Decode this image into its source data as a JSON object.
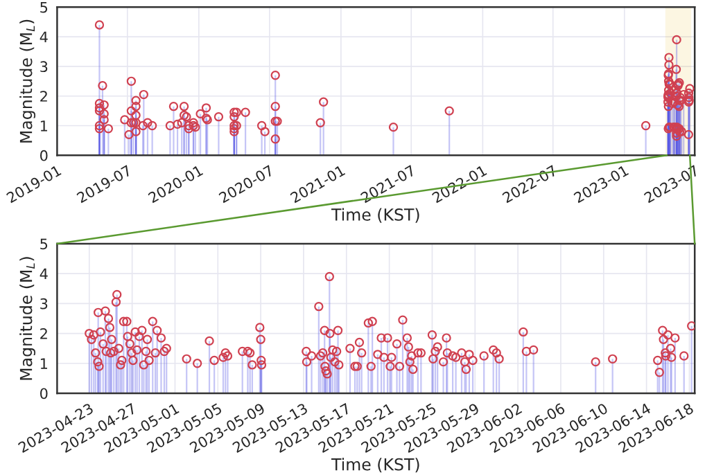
{
  "chart_data": [
    {
      "type": "lollipop",
      "xlabel": "Time (KST)",
      "ylabel": "Magnitude (M$_{L}$)",
      "xlim": [
        "2019-01",
        "2023-07"
      ],
      "ylim": [
        0,
        5
      ],
      "yticks": [
        0,
        1,
        2,
        3,
        4,
        5
      ],
      "xticks": [
        "2019-01",
        "2019-07",
        "2020-01",
        "2020-07",
        "2021-01",
        "2021-07",
        "2022-01",
        "2022-07",
        "2023-01",
        "2023-07"
      ],
      "grid": true,
      "marker": "circle",
      "bands": [
        {
          "axis": "x",
          "from": "2023-04-20",
          "to": "2023-06-18T12:00",
          "color": "#e8c040"
        }
      ],
      "series": [
        {
          "color": "#d04050",
          "x": [
            "2019-04-20",
            "2019-04-20",
            "2019-04-20",
            "2019-04-20",
            "2019-04-20",
            "2019-04-20",
            "2019-04-28",
            "2019-05-02",
            "2019-05-02",
            "2019-05-02",
            "2019-05-13",
            "2019-06-24",
            "2019-07-05",
            "2019-07-11",
            "2019-07-11",
            "2019-07-11",
            "2019-07-17",
            "2019-07-23",
            "2019-07-23",
            "2019-07-23",
            "2019-07-23",
            "2019-07-23",
            "2019-08-10",
            "2019-08-12",
            "2019-08-22",
            "2019-09-03",
            "2019-10-19",
            "2019-10-28",
            "2019-11-07",
            "2019-11-18",
            "2019-11-24",
            "2019-11-24",
            "2019-11-30",
            "2019-12-06",
            "2019-12-06",
            "2019-12-18",
            "2019-12-18",
            "2019-12-23",
            "2020-01-05",
            "2020-01-20",
            "2020-01-20",
            "2020-01-23",
            "2020-02-21",
            "2020-04-01",
            "2020-04-01",
            "2020-04-01",
            "2020-04-01",
            "2020-04-01",
            "2020-04-07",
            "2020-04-07",
            "2020-04-30",
            "2020-06-11",
            "2020-06-19",
            "2020-07-16",
            "2020-07-16",
            "2020-07-16",
            "2020-07-16",
            "2020-07-21",
            "2020-11-09",
            "2020-11-17",
            "2021-05-16",
            "2021-10-07",
            "2023-02-25",
            "2023-04-23T00:00",
            "2023-04-23T05:00",
            "2023-04-23T10:00",
            "2023-04-23T14:00",
            "2023-04-23T19:00",
            "2023-04-23T20:00",
            "2023-04-23T22:00",
            "2023-04-24T01:00",
            "2023-04-24T07:00",
            "2023-04-24T12:00",
            "2023-04-24T14:00",
            "2023-04-24T19:00",
            "2023-04-24T22:00",
            "2023-04-25T00:00",
            "2023-04-25T02:00",
            "2023-04-25T07:00",
            "2023-04-25T12:00",
            "2023-04-25T14:00",
            "2023-04-25T18:00",
            "2023-04-25T22:00",
            "2023-04-26T01:00",
            "2023-04-26T05:00",
            "2023-04-26T12:00",
            "2023-04-26T14:00",
            "2023-04-26T19:00",
            "2023-04-26T23:00",
            "2023-04-27T02:00",
            "2023-04-27T07:00",
            "2023-04-27T11:00",
            "2023-04-27T16:00",
            "2023-04-27T22:00",
            "2023-04-28T02:00",
            "2023-04-28T07:00",
            "2023-04-28T10:00",
            "2023-04-28T14:00",
            "2023-04-28T22:00",
            "2023-04-29T04:00",
            "2023-04-29T08:00",
            "2023-04-29T17:00",
            "2023-04-30T00:00",
            "2023-04-30T05:00",
            "2023-05-02T02:00",
            "2023-05-03T02:00",
            "2023-05-04T05:00",
            "2023-05-04T16:00",
            "2023-05-05T12:00",
            "2023-05-05T17:00",
            "2023-05-05T22:00",
            "2023-05-07T07:00",
            "2023-05-07T19:00",
            "2023-05-08T00:00",
            "2023-05-08T05:00",
            "2023-05-08T22:00",
            "2023-05-09T00:00",
            "2023-05-09T01:00",
            "2023-05-09T02:00",
            "2023-05-13T06:00",
            "2023-05-13T07:00",
            "2023-05-13T18:00",
            "2023-05-14T10:00",
            "2023-05-14T14:00",
            "2023-05-14T19:00",
            "2023-05-14T23:00",
            "2023-05-15T00:00",
            "2023-05-15T02:00",
            "2023-05-15T05:00",
            "2023-05-15T10:00",
            "2023-05-15T11:00",
            "2023-05-15T13:00",
            "2023-05-15T17:00",
            "2023-05-15T22:00",
            "2023-05-16T02:00",
            "2023-05-16T05:00",
            "2023-05-16T07:00",
            "2023-05-17T08:00",
            "2023-05-17T19:00",
            "2023-05-18T00:00",
            "2023-05-18T05:00",
            "2023-05-18T10:00",
            "2023-05-19T01:00",
            "2023-05-19T07:00",
            "2023-05-19T10:00",
            "2023-05-19T22:00",
            "2023-05-20T06:00",
            "2023-05-20T12:00",
            "2023-05-20T20:00",
            "2023-05-21T02:00",
            "2023-05-21T05:00",
            "2023-05-21T17:00",
            "2023-05-21T23:00",
            "2023-05-22T06:00",
            "2023-05-22T16:00",
            "2023-05-22T19:00",
            "2023-05-22T22:00",
            "2023-05-23T02:00",
            "2023-05-23T05:00",
            "2023-05-23T16:00",
            "2023-05-23T23:00",
            "2023-05-25T00:00",
            "2023-05-25T02:00",
            "2023-05-25T07:00",
            "2023-05-25T12:00",
            "2023-05-26T01:00",
            "2023-05-26T08:00",
            "2023-05-26T10:00",
            "2023-05-26T22:00",
            "2023-05-27T05:00",
            "2023-05-27T18:00",
            "2023-05-28T01:00",
            "2023-05-28T04:00",
            "2023-05-28T11:00",
            "2023-05-28T19:00",
            "2023-05-29T20:00",
            "2023-05-30T17:00",
            "2023-05-31T00:00",
            "2023-05-31T06:00",
            "2023-06-02T12:00",
            "2023-06-02T19:00",
            "2023-06-03T11:00",
            "2023-06-09T06:00",
            "2023-06-10T20:00",
            "2023-06-15T01:00",
            "2023-06-15T05:00",
            "2023-06-15T12:00",
            "2023-06-15T14:00",
            "2023-06-15T18:00",
            "2023-06-15T19:00",
            "2023-06-16T00:00",
            "2023-06-16T06:00",
            "2023-06-16T08:00",
            "2023-06-16T16:00",
            "2023-06-17T12:00",
            "2023-06-18T05:00"
          ],
          "values": [
            4.4,
            1.75,
            1.6,
            1.5,
            1.0,
            0.9,
            2.35,
            1.7,
            1.4,
            1.2,
            0.9,
            1.2,
            0.7,
            2.5,
            1.5,
            1.1,
            1.1,
            1.85,
            1.65,
            1.35,
            1.1,
            0.8,
            1.0,
            2.05,
            1.1,
            1.0,
            1.0,
            1.65,
            1.05,
            1.1,
            1.65,
            1.35,
            1.3,
            0.9,
            1.0,
            1.0,
            1.1,
            0.95,
            1.4,
            1.6,
            1.25,
            1.2,
            1.3,
            1.45,
            1.3,
            1.0,
            0.9,
            0.8,
            1.45,
            1.0,
            1.45,
            1.0,
            0.8,
            2.7,
            1.65,
            1.15,
            0.55,
            1.15,
            1.1,
            1.8,
            0.95,
            1.5,
            1.0,
            2.0,
            1.8,
            1.95,
            null,
            null,
            2.7,
            0.9,
            2.05,
            1.65,
            2.75,
            null,
            2.5,
            2.2,
            null,
            null,
            null,
            3.05,
            3.3,
            null,
            0.95,
            null,
            2.4,
            2.4,
            null,
            null,
            null,
            null,
            null,
            null,
            null,
            null,
            0.95,
            null,
            null,
            null,
            2.4,
            null,
            2.1,
            null,
            null,
            null,
            null,
            null,
            1.75,
            null,
            null,
            null,
            null,
            null,
            null,
            null,
            0.95,
            2.2,
            1.8,
            null,
            0.95,
            null,
            null,
            null,
            2.9,
            null,
            null,
            2.1,
            0.9,
            0.75,
            0.65,
            3.9,
            2.0,
            null,
            null,
            null,
            null,
            2.1,
            0.95,
            null,
            null,
            0.9,
            1.7,
            null,
            2.35,
            null,
            2.4,
            null,
            null,
            null,
            null,
            null,
            null,
            1.65,
            0.9,
            2.45,
            1.85,
            null,
            null,
            null,
            0.8,
            null,
            null,
            1.95,
            null,
            null,
            null,
            null,
            1.85,
            null,
            null,
            null,
            null,
            null,
            0.8,
            null,
            null,
            null,
            null,
            null,
            null,
            2.05,
            null,
            null,
            null,
            null,
            null,
            0.7,
            2.1,
            1.8,
            null,
            null,
            1.95,
            null,
            null,
            1.85,
            null,
            2.25
          ]
        }
      ]
    },
    {
      "type": "lollipop",
      "xlabel": "Time (KST)",
      "ylabel": "Magnitude (M$_{L}$)",
      "xlim": [
        "2023-04-20",
        "2023-06-18T12:00"
      ],
      "ylim": [
        0,
        5
      ],
      "yticks": [
        0,
        1,
        2,
        3,
        4,
        5
      ],
      "xticks": [
        "2023-04-23",
        "2023-04-27",
        "2023-05-01",
        "2023-05-05",
        "2023-05-09",
        "2023-05-13",
        "2023-05-17",
        "2023-05-21",
        "2023-05-25",
        "2023-05-29",
        "2023-06-02",
        "2023-06-06",
        "2023-06-10",
        "2023-06-14",
        "2023-06-18"
      ],
      "grid": true,
      "marker": "circle",
      "series": [
        {
          "color": "#d04050",
          "x": [
            "2023-04-23T00:00",
            "2023-04-23T05:00",
            "2023-04-23T10:00",
            "2023-04-23T14:00",
            "2023-04-23T19:00",
            "2023-04-23T20:00",
            "2023-04-23T22:00",
            "2023-04-24T01:00",
            "2023-04-24T07:00",
            "2023-04-24T12:00",
            "2023-04-24T14:00",
            "2023-04-24T19:00",
            "2023-04-24T22:00",
            "2023-04-25T00:00",
            "2023-04-25T02:00",
            "2023-04-25T07:00",
            "2023-04-25T12:00",
            "2023-04-25T14:00",
            "2023-04-25T18:00",
            "2023-04-25T22:00",
            "2023-04-26T01:00",
            "2023-04-26T05:00",
            "2023-04-26T12:00",
            "2023-04-26T14:00",
            "2023-04-26T19:00",
            "2023-04-26T23:00",
            "2023-04-27T02:00",
            "2023-04-27T07:00",
            "2023-04-27T11:00",
            "2023-04-27T16:00",
            "2023-04-27T22:00",
            "2023-04-28T02:00",
            "2023-04-28T07:00",
            "2023-04-28T10:00",
            "2023-04-28T14:00",
            "2023-04-28T22:00",
            "2023-04-29T04:00",
            "2023-04-29T08:00",
            "2023-04-29T17:00",
            "2023-04-30T00:00",
            "2023-04-30T05:00",
            "2023-05-02T02:00",
            "2023-05-03T02:00",
            "2023-05-04T05:00",
            "2023-05-04T16:00",
            "2023-05-05T12:00",
            "2023-05-05T17:00",
            "2023-05-05T22:00",
            "2023-05-07T07:00",
            "2023-05-07T19:00",
            "2023-05-08T00:00",
            "2023-05-08T05:00",
            "2023-05-08T22:00",
            "2023-05-09T00:00",
            "2023-05-09T01:00",
            "2023-05-09T02:00",
            "2023-05-13T06:00",
            "2023-05-13T07:00",
            "2023-05-13T18:00",
            "2023-05-14T10:00",
            "2023-05-14T14:00",
            "2023-05-14T19:00",
            "2023-05-14T23:00",
            "2023-05-15T00:00",
            "2023-05-15T02:00",
            "2023-05-15T05:00",
            "2023-05-15T10:00",
            "2023-05-15T11:00",
            "2023-05-15T13:00",
            "2023-05-15T17:00",
            "2023-05-15T22:00",
            "2023-05-16T02:00",
            "2023-05-16T05:00",
            "2023-05-16T07:00",
            "2023-05-17T08:00",
            "2023-05-17T19:00",
            "2023-05-18T00:00",
            "2023-05-18T05:00",
            "2023-05-18T10:00",
            "2023-05-19T01:00",
            "2023-05-19T07:00",
            "2023-05-19T10:00",
            "2023-05-19T22:00",
            "2023-05-20T06:00",
            "2023-05-20T12:00",
            "2023-05-20T20:00",
            "2023-05-21T02:00",
            "2023-05-21T05:00",
            "2023-05-21T17:00",
            "2023-05-21T23:00",
            "2023-05-22T06:00",
            "2023-05-22T16:00",
            "2023-05-22T19:00",
            "2023-05-22T22:00",
            "2023-05-23T02:00",
            "2023-05-23T05:00",
            "2023-05-23T16:00",
            "2023-05-23T23:00",
            "2023-05-25T00:00",
            "2023-05-25T02:00",
            "2023-05-25T07:00",
            "2023-05-25T12:00",
            "2023-05-26T01:00",
            "2023-05-26T08:00",
            "2023-05-26T10:00",
            "2023-05-26T22:00",
            "2023-05-27T05:00",
            "2023-05-27T18:00",
            "2023-05-28T01:00",
            "2023-05-28T04:00",
            "2023-05-28T11:00",
            "2023-05-28T19:00",
            "2023-05-29T20:00",
            "2023-05-30T17:00",
            "2023-05-31T00:00",
            "2023-05-31T06:00",
            "2023-06-02T12:00",
            "2023-06-02T19:00",
            "2023-06-03T11:00",
            "2023-06-09T06:00",
            "2023-06-10T20:00",
            "2023-06-15T01:00",
            "2023-06-15T05:00",
            "2023-06-15T12:00",
            "2023-06-15T14:00",
            "2023-06-15T18:00",
            "2023-06-15T19:00",
            "2023-06-16T00:00",
            "2023-06-16T06:00",
            "2023-06-16T08:00",
            "2023-06-16T16:00",
            "2023-06-17T12:00",
            "2023-06-18T05:00"
          ],
          "values": [
            2.0,
            1.8,
            1.95,
            1.35,
            1.05,
            2.7,
            0.9,
            2.05,
            1.65,
            2.75,
            1.4,
            2.5,
            2.2,
            1.35,
            1.8,
            1.4,
            3.05,
            3.3,
            1.5,
            0.95,
            1.1,
            2.4,
            2.4,
            1.9,
            1.65,
            1.35,
            1.1,
            2.05,
            1.45,
            1.9,
            2.1,
            0.95,
            1.4,
            1.8,
            1.1,
            2.4,
            1.35,
            2.1,
            1.85,
            1.4,
            1.5,
            1.15,
            1.0,
            1.75,
            1.1,
            1.2,
            1.35,
            1.25,
            1.4,
            1.4,
            1.35,
            0.95,
            2.2,
            1.8,
            1.1,
            0.95,
            1.4,
            1.05,
            1.25,
            2.9,
            1.25,
            1.35,
            2.1,
            0.9,
            0.75,
            0.65,
            3.9,
            2.0,
            1.2,
            1.45,
            1.05,
            1.4,
            2.1,
            0.95,
            1.5,
            0.9,
            0.9,
            1.7,
            1.35,
            2.35,
            0.9,
            2.4,
            1.3,
            1.85,
            1.2,
            1.85,
            0.9,
            1.2,
            1.65,
            0.9,
            2.45,
            1.85,
            1.55,
            1.05,
            1.25,
            0.8,
            1.35,
            1.35,
            1.95,
            1.15,
            1.4,
            1.55,
            1.05,
            1.85,
            1.35,
            1.25,
            1.2,
            1.35,
            1.05,
            0.8,
            1.3,
            1.1,
            1.25,
            1.45,
            1.35,
            1.15,
            2.05,
            1.4,
            1.45,
            1.05,
            1.15,
            1.1,
            0.7,
            2.1,
            1.8,
            1.35,
            1.25,
            1.95,
            1.5,
            1.2,
            1.85,
            1.25,
            2.25
          ]
        }
      ]
    }
  ]
}
